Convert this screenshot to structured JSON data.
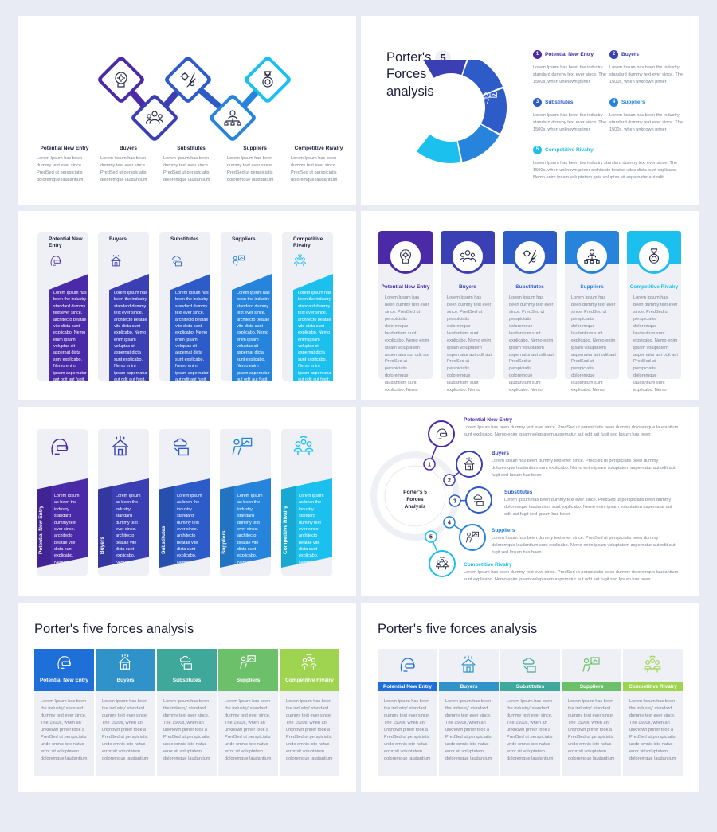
{
  "colors": [
    "#4a2aa6",
    "#3b3fb4",
    "#2d5bc7",
    "#2784dd",
    "#1cc0ee"
  ],
  "green_colors": [
    "#1f6fd9",
    "#2f92c9",
    "#3fa89a",
    "#6cc06a",
    "#9ed44f"
  ],
  "labels": [
    "Potential New Entry",
    "Buyers",
    "Substitutes",
    "Suppliers",
    "Competitive Rivalry"
  ],
  "icons": [
    "brain-gear-icon",
    "people-group-icon",
    "tools-icon",
    "network-person-icon",
    "medal-icon"
  ],
  "slide1": {
    "text": "Lorem Ipsum has been dummy text ever since. PredSed ut perspiciatis doloremque laudantium"
  },
  "slide2": {
    "title_a": "Porter's",
    "title_num": "5",
    "title_b": "Forces",
    "title_c": "analysis",
    "item_numbers": [
      "1",
      "2",
      "3",
      "4",
      "5"
    ],
    "item_text": "Lorem Ipsum has been the industry standard dummy text ever since. The 1500s, when unknown priner",
    "item5_text": "Lorem Ipsum has been the industry standard dummy text ever since. The 1500s, when unknown priner architecto beatae vitae dicta sunt explicabo. Nemo enim ipsam voluptatem quia voluptas sit aspernatur aut odit"
  },
  "slide3": {
    "labels": [
      "Potential New Entry",
      "Buyers",
      "Substitutes",
      "Suppliers",
      "Competitive Rivalry"
    ],
    "text": "Lorem Ipsum has been the industry standard dummy text ever since. architecto beatae vite dicta sunt explicabo. Nemo enim ipsam voluptas sit aspernat dicta sunt explicabo. Nemo enim ipsam aspernatur aut odit aut fugit, sed quia consequuntur magni ratione voluptatem"
  },
  "slide4": {
    "text": "Lorem Ipsum has been dummy text ever since. PredSed ut perspiciatis doloremque laudantium sunt explicabo. Nemo enim ipsam voluptatem aspernatur aut odit aut PredSed ut perspiciatis doloremque laudantium sunt explicabo. Nemo"
  },
  "slide5": {
    "text": "Lorem Ipsum as been the industry standard dummy text ever since. architecto beatae vite dicta sunt explicabo. Nemo aspernat dicta sunt explicabo. Nemo aspernat aut odit aut fugit, sed quia consequuntur"
  },
  "slide6": {
    "center_label": "Porter's 5 Forces Analysis",
    "numbers": [
      "1",
      "2",
      "3",
      "4",
      "5"
    ],
    "text": "Lorem Ipsum has been dummy text ever since. PredSed ut perspiciatis been dummy doloremque laudantium sunt explicabo. Nemo enim ipsam voluptatem aspernatur aut odit aut fugit sed Ipsum has been"
  },
  "slide7": {
    "title": "Porter's five forces analysis",
    "text": "Lorem Ipsum has been the industry' standard dummy text ever since. The 1500s, when an unknown priner took a PredSed ut perspiciatis unde omnis iste natus error sit voluptatem doloremque laudantium"
  },
  "slide8": {
    "title": "Porter's five forces analysis",
    "text": "Lorem Ipsum has been the industry' standard dummy text ever since. The 1500s, when an unknown priner took a PredSed ut perspiciatis unde omnis iste natus error sit voluptatem doloremque laudantium"
  }
}
